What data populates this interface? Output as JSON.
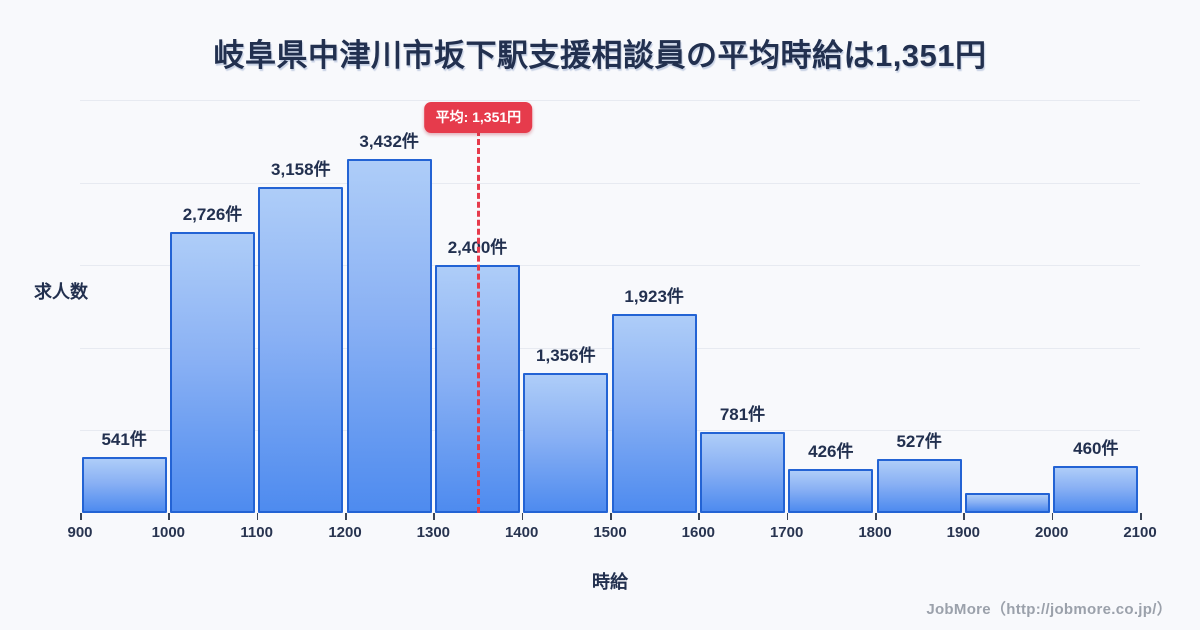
{
  "title": "岐阜県中津川市坂下駅支援相談員の平均時給は1,351円",
  "ylabel": "求人数",
  "xlabel": "時給",
  "footer": "JobMore（http://jobmore.co.jp/）",
  "average_badge": "平均: 1,351円",
  "colors": {
    "background": "#f8f9fc",
    "bar_border": "#2363d4",
    "bar_gradient_top": "#aecdf8",
    "bar_gradient_bottom": "#4e8bef",
    "average_red": "#e63b4c",
    "text_dark": "#22304f",
    "gridline": "#e7eaf1",
    "footer_gray": "#9ba1ab"
  },
  "chart_data": {
    "type": "bar",
    "subtype": "histogram",
    "title": "岐阜県中津川市坂下駅支援相談員の平均時給は1,351円",
    "xlabel": "時給",
    "ylabel": "求人数",
    "bin_edges": [
      900,
      1000,
      1100,
      1200,
      1300,
      1400,
      1500,
      1600,
      1700,
      1800,
      1900,
      2000,
      2100
    ],
    "x_tick_labels": [
      "900",
      "1000",
      "1100",
      "1200",
      "1300",
      "1400",
      "1500",
      "1600",
      "1700",
      "1800",
      "1900",
      "2000",
      "2100"
    ],
    "values": [
      541,
      2726,
      3158,
      3432,
      2400,
      1356,
      1923,
      781,
      426,
      527,
      190,
      460
    ],
    "bar_labels": [
      "541件",
      "2,726件",
      "3,158件",
      "3,432件",
      "2,400件",
      "1,356件",
      "1,923件",
      "781件",
      "426件",
      "527件",
      "",
      "460件"
    ],
    "unlabeled_bins": [
      10
    ],
    "average_line": {
      "value": 1351,
      "label": "平均: 1,351円"
    },
    "ylim": [
      0,
      4000
    ],
    "gridline_step": 800,
    "grid": true,
    "legend": false
  }
}
